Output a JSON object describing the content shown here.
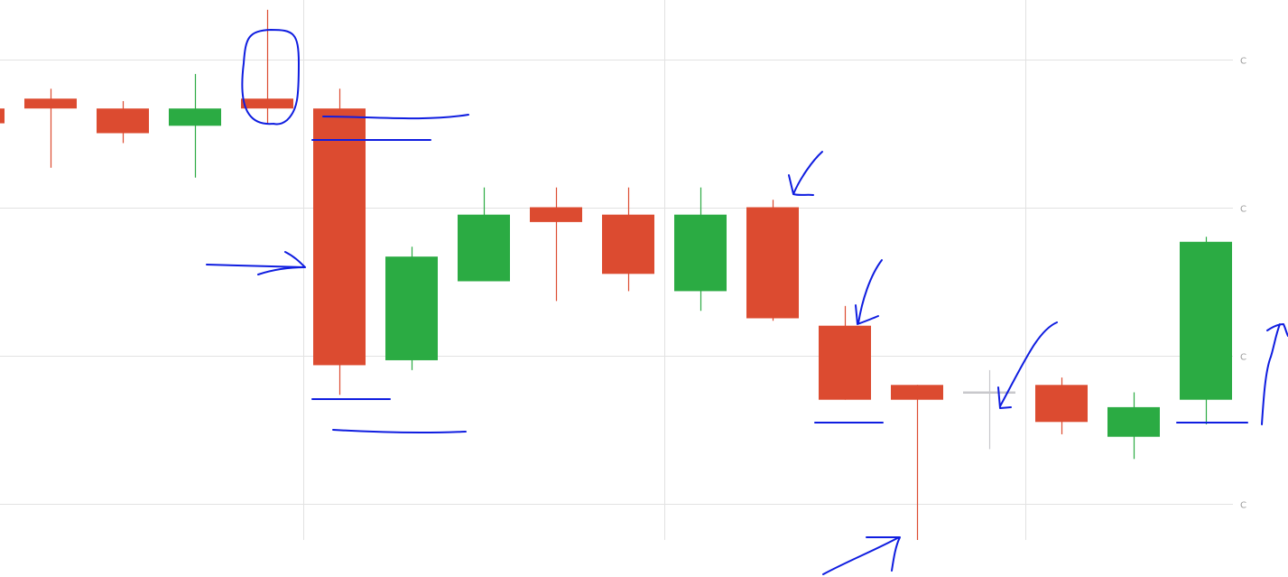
{
  "chart_data": {
    "type": "candlestick",
    "title": "",
    "xlabel": "",
    "ylabel": "",
    "ylim": [
      0,
      100
    ],
    "y_ticks": [
      {
        "value": 100,
        "label": "C"
      },
      {
        "value": 70,
        "label": "C"
      },
      {
        "value": 40,
        "label": "C"
      },
      {
        "value": 10,
        "label": "C"
      }
    ],
    "candles": [
      {
        "open": 90.0,
        "high": 91.0,
        "low": 87.0,
        "close": 87.0
      },
      {
        "open": 92.0,
        "high": 94.0,
        "low": 78.0,
        "close": 90.0
      },
      {
        "open": 90.0,
        "high": 91.5,
        "low": 83.0,
        "close": 85.0
      },
      {
        "open": 86.5,
        "high": 97.0,
        "low": 76.0,
        "close": 90.0
      },
      {
        "open": 92.0,
        "high": 110.0,
        "low": 87.0,
        "close": 90.0
      },
      {
        "open": 90.0,
        "high": 94.0,
        "low": 32.0,
        "close": 38.0
      },
      {
        "open": 39.0,
        "high": 62.0,
        "low": 37.0,
        "close": 60.0
      },
      {
        "open": 55.0,
        "high": 74.0,
        "low": 55.0,
        "close": 68.5
      },
      {
        "open": 70.0,
        "high": 74.0,
        "low": 51.0,
        "close": 67.0
      },
      {
        "open": 68.5,
        "high": 74.0,
        "low": 53.0,
        "close": 56.5
      },
      {
        "open": 53.0,
        "high": 74.0,
        "low": 49.0,
        "close": 68.5
      },
      {
        "open": 70.0,
        "high": 71.5,
        "low": 47.0,
        "close": 47.5
      },
      {
        "open": 46.0,
        "high": 50.0,
        "low": 31.0,
        "close": 31.0
      },
      {
        "open": 34.0,
        "high": 34.0,
        "low": -5.0,
        "close": 31.0
      },
      {
        "open": 32.5,
        "high": 37.0,
        "low": 21.0,
        "close": 32.5
      },
      {
        "open": 34.0,
        "high": 35.5,
        "low": 24.0,
        "close": 26.5
      },
      {
        "open": 23.5,
        "high": 32.5,
        "low": 19.0,
        "close": 29.5
      },
      {
        "open": 31.0,
        "high": 64.0,
        "low": 26.0,
        "close": 63.0
      }
    ],
    "colors": {
      "up": "#2bab43",
      "down": "#dc4b30",
      "neutral": "#c8c8cc",
      "grid": "#e2e2e2",
      "tick_label": "#999999",
      "annotation": "#0f1de0"
    }
  }
}
